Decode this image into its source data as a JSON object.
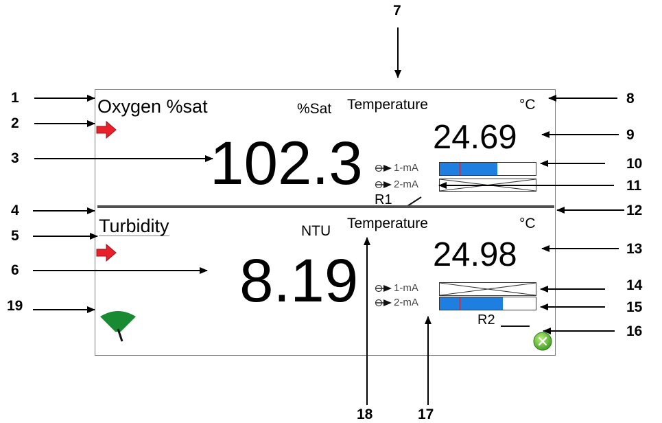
{
  "callouts": [
    "1",
    "2",
    "3",
    "4",
    "5",
    "6",
    "7",
    "8",
    "9",
    "10",
    "11",
    "12",
    "13",
    "14",
    "15",
    "16",
    "17",
    "18",
    "19"
  ],
  "channel1": {
    "name": "Oxygen %sat",
    "unit": "%Sat",
    "value": "102.3",
    "temp_label": "Temperature",
    "temp_unit": "°C",
    "temp_value": "24.69",
    "outputs": [
      {
        "label": "1-mA",
        "state": "active",
        "level": 0.6
      },
      {
        "label": "2-mA",
        "state": "off"
      }
    ],
    "relay": {
      "label": "R1",
      "state": "closed"
    }
  },
  "channel2": {
    "name": "Turbidity",
    "unit": "NTU",
    "value": "8.19",
    "temp_label": "Temperature",
    "temp_unit": "°C",
    "temp_value": "24.98",
    "outputs": [
      {
        "label": "1-mA",
        "state": "off"
      },
      {
        "label": "2-mA",
        "state": "active",
        "level": 0.66
      }
    ],
    "relay": {
      "label": "R2",
      "state": "open"
    }
  },
  "colors": {
    "bar_fill": "#1f7fe0",
    "bar_marker": "#c0202a",
    "alarm_arrow": "#e8202a",
    "gauge": "#178a32",
    "tools_button": "#4caf2a"
  },
  "icons": [
    "red-arrow-icon",
    "output-arrow-icon",
    "relay-closed-icon",
    "relay-open-icon",
    "green-gauge-icon",
    "tools-icon"
  ]
}
